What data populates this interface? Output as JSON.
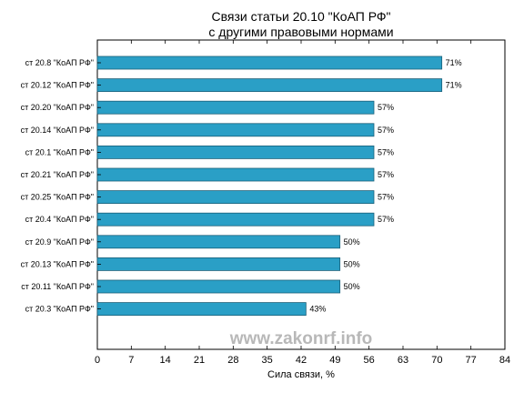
{
  "chart_data": {
    "type": "bar",
    "orientation": "horizontal",
    "title_line1": "Связи статьи 20.10 \"КоАП РФ\"",
    "title_line2": "с другими правовыми нормами",
    "xlabel": "Сила связи, %",
    "ylabel": "",
    "xlim": [
      0,
      84
    ],
    "xticks": [
      0,
      7,
      14,
      21,
      28,
      35,
      42,
      49,
      56,
      63,
      70,
      77,
      84
    ],
    "categories": [
      "ст 20.8 \"КоАП РФ\"",
      "ст 20.12 \"КоАП РФ\"",
      "ст 20.20 \"КоАП РФ\"",
      "ст 20.14 \"КоАП РФ\"",
      "ст 20.1 \"КоАП РФ\"",
      "ст 20.21 \"КоАП РФ\"",
      "ст 20.25 \"КоАП РФ\"",
      "ст 20.4 \"КоАП РФ\"",
      "ст 20.9 \"КоАП РФ\"",
      "ст 20.13 \"КоАП РФ\"",
      "ст 20.11 \"КоАП РФ\"",
      "ст 20.3 \"КоАП РФ\""
    ],
    "values": [
      71,
      71,
      57,
      57,
      57,
      57,
      57,
      57,
      50,
      50,
      50,
      43
    ],
    "value_labels": [
      "71%",
      "71%",
      "57%",
      "57%",
      "57%",
      "57%",
      "57%",
      "57%",
      "50%",
      "50%",
      "50%",
      "43%"
    ],
    "bar_color": "#2a9fc6",
    "bar_edge_color": "#1a5f78",
    "grid": false,
    "watermark": "www.zakonrf.info"
  }
}
